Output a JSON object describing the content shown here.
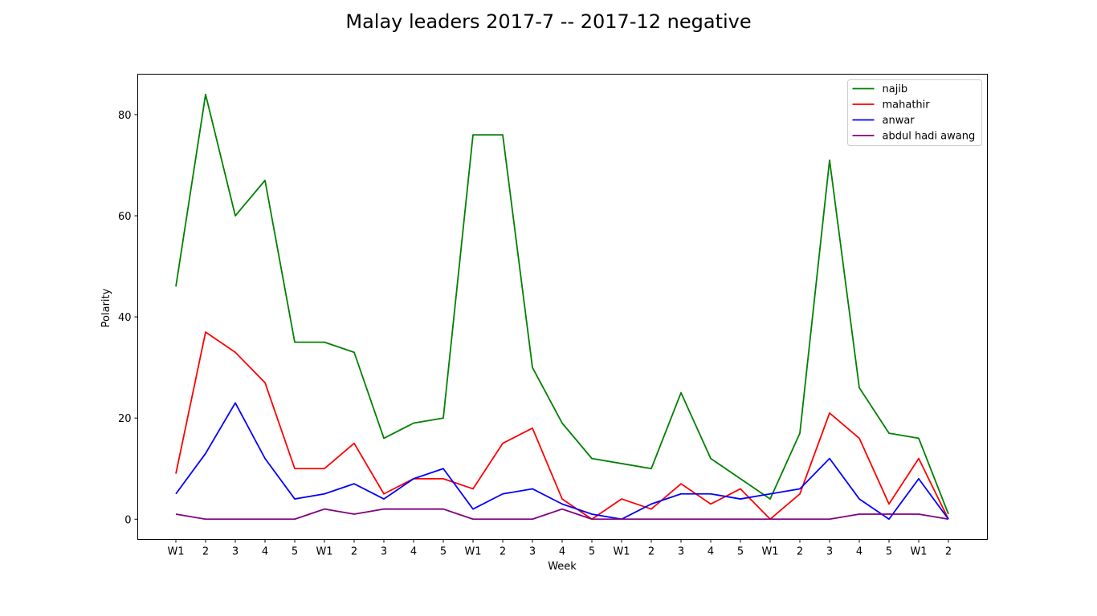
{
  "chart_data": {
    "type": "line",
    "title": "Malay leaders 2017-7 -- 2017-12 negative",
    "xlabel": "Week",
    "ylabel": "Polarity",
    "categories": [
      "W1",
      "2",
      "3",
      "4",
      "5",
      "W1",
      "2",
      "3",
      "4",
      "5",
      "W1",
      "2",
      "3",
      "4",
      "5",
      "W1",
      "2",
      "3",
      "4",
      "5",
      "W1",
      "2",
      "3",
      "4",
      "5",
      "W1",
      "2"
    ],
    "ylim": [
      -4,
      88
    ],
    "yticks": [
      0,
      20,
      40,
      60,
      80
    ],
    "grid": false,
    "legend_position": "top-right",
    "series": [
      {
        "name": "najib",
        "color": "#008000",
        "values": [
          46,
          84,
          60,
          67,
          35,
          35,
          33,
          16,
          19,
          20,
          76,
          76,
          30,
          19,
          12,
          11,
          10,
          25,
          12,
          8,
          4,
          17,
          71,
          26,
          17,
          16,
          1
        ]
      },
      {
        "name": "mahathir",
        "color": "#ff0000",
        "values": [
          9,
          37,
          33,
          27,
          10,
          10,
          15,
          5,
          8,
          8,
          6,
          15,
          18,
          4,
          0,
          4,
          2,
          7,
          3,
          6,
          0,
          5,
          21,
          16,
          3,
          12,
          0
        ]
      },
      {
        "name": "anwar",
        "color": "#0000ff",
        "values": [
          5,
          13,
          23,
          12,
          4,
          5,
          7,
          4,
          8,
          10,
          2,
          5,
          6,
          3,
          1,
          0,
          3,
          5,
          5,
          4,
          5,
          6,
          12,
          4,
          0,
          8,
          0
        ]
      },
      {
        "name": "abdul hadi awang",
        "color": "#800080",
        "values": [
          1,
          0,
          0,
          0,
          0,
          2,
          1,
          2,
          2,
          2,
          0,
          0,
          0,
          2,
          0,
          0,
          0,
          0,
          0,
          0,
          0,
          0,
          0,
          1,
          1,
          1,
          0
        ]
      }
    ]
  }
}
